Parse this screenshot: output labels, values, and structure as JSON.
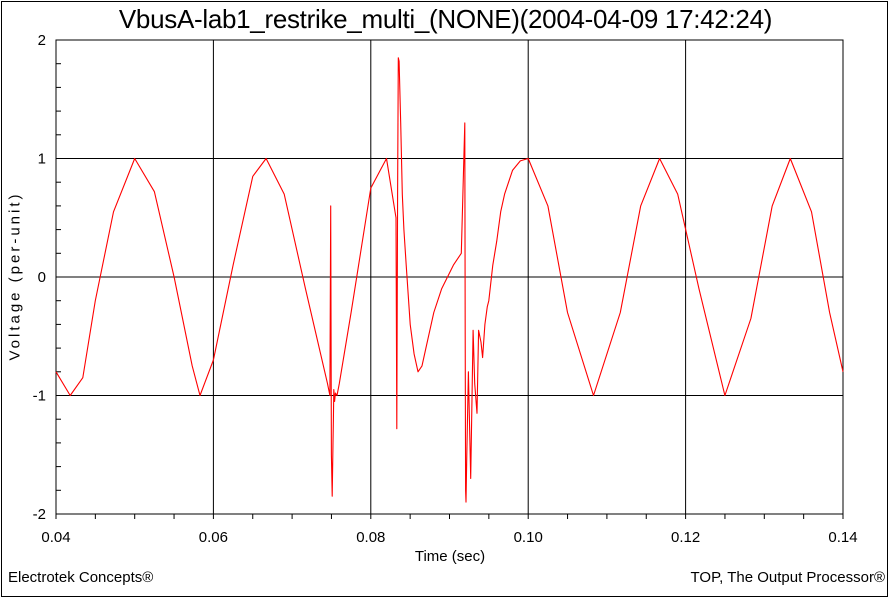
{
  "chart_data": {
    "type": "line",
    "title": "VbusA-lab1_restrike_multi_(NONE)(2004-04-09 17:42:24)",
    "xlabel": "Time (sec)",
    "ylabel": "Voltage (per-unit)",
    "xlim": [
      0.04,
      0.14
    ],
    "ylim": [
      -2,
      2
    ],
    "x_ticks": [
      "0.04",
      "0.06",
      "0.08",
      "0.10",
      "0.12",
      "0.14"
    ],
    "y_ticks": [
      "2",
      "1",
      "0",
      "-1",
      "-2"
    ],
    "grid": true,
    "line_color": "#ff0000",
    "series": [
      {
        "x": [
          0.04,
          0.0418,
          0.0434,
          0.045,
          0.0473,
          0.05,
          0.0525,
          0.055,
          0.0573,
          0.0583,
          0.06,
          0.0625,
          0.065,
          0.0667,
          0.069,
          0.0717,
          0.0745,
          0.0748,
          0.0749,
          0.075,
          0.0751,
          0.0752,
          0.07525,
          0.0753,
          0.0754,
          0.0755,
          0.0757,
          0.076,
          0.0775,
          0.08,
          0.082,
          0.0832,
          0.0833,
          0.0834,
          0.0835,
          0.0836,
          0.0838,
          0.084,
          0.0842,
          0.0845,
          0.085,
          0.0855,
          0.086,
          0.0865,
          0.087,
          0.088,
          0.089,
          0.0905,
          0.0915,
          0.09195,
          0.092,
          0.09205,
          0.0921,
          0.0922,
          0.0924,
          0.0927,
          0.093,
          0.0932,
          0.0935,
          0.0937,
          0.094,
          0.0942,
          0.0945,
          0.0948,
          0.095,
          0.0955,
          0.096,
          0.0965,
          0.097,
          0.098,
          0.099,
          0.1,
          0.1025,
          0.105,
          0.1083,
          0.1117,
          0.1143,
          0.1167,
          0.119,
          0.1217,
          0.125,
          0.1283,
          0.131,
          0.1333,
          0.136,
          0.1383,
          0.14
        ],
        "values": [
          -0.8,
          -1.0,
          -0.85,
          -0.2,
          0.55,
          1.0,
          0.72,
          0.0,
          -0.75,
          -1.0,
          -0.7,
          0.1,
          0.85,
          1.0,
          0.7,
          -0.1,
          -0.9,
          -1.0,
          0.6,
          -1.5,
          -1.85,
          -1.4,
          -1.2,
          -0.95,
          -1.05,
          -0.98,
          -1.0,
          -0.9,
          -0.3,
          0.75,
          1.0,
          0.5,
          -1.28,
          0.7,
          1.85,
          1.82,
          1.3,
          0.7,
          0.4,
          0.1,
          -0.4,
          -0.65,
          -0.8,
          -0.75,
          -0.6,
          -0.3,
          -0.1,
          0.1,
          0.2,
          1.3,
          -0.5,
          -1.8,
          -1.9,
          -1.5,
          -0.8,
          -1.7,
          -0.45,
          -0.9,
          -1.15,
          -0.45,
          -0.55,
          -0.68,
          -0.4,
          -0.25,
          -0.2,
          0.1,
          0.3,
          0.55,
          0.7,
          0.9,
          0.98,
          1.0,
          0.6,
          -0.3,
          -1.0,
          -0.3,
          0.6,
          1.0,
          0.7,
          -0.1,
          -1.0,
          -0.35,
          0.6,
          1.0,
          0.55,
          -0.3,
          -0.8
        ]
      }
    ]
  },
  "footer": {
    "left": "Electrotek Concepts®",
    "right": "TOP, The Output Processor®"
  }
}
